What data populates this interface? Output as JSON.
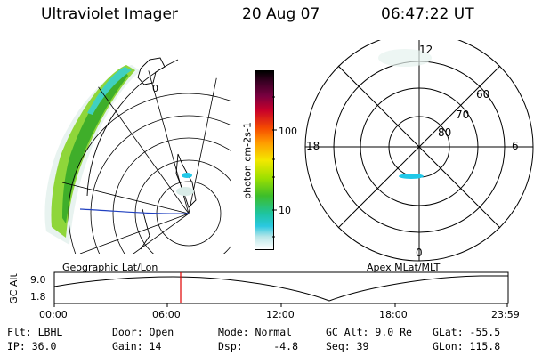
{
  "header": {
    "title": "Ultraviolet Imager",
    "date": "20 Aug 07",
    "time": "06:47:22 UT"
  },
  "colorbar": {
    "unit_label": "photon cm-2s-1",
    "ticks": [
      "100",
      "10"
    ]
  },
  "polar_plot": {
    "mlt_labels": {
      "top": "12",
      "bottom": "0",
      "left": "18",
      "right": "6"
    },
    "lat_labels": [
      "60",
      "70",
      "80"
    ]
  },
  "map_plot": {
    "meridian_label": "0"
  },
  "timeline": {
    "left_caption": "Geographic Lat/Lon",
    "right_caption": "Apex MLat/MLT",
    "ylabel": "GC Alt",
    "y_ticks": [
      "9.0",
      "1.8"
    ],
    "x_ticks": [
      "00:00",
      "06:00",
      "12:00",
      "18:00",
      "23:59"
    ],
    "current_marker": "06:47"
  },
  "footer": {
    "filter": "Flt: LBHL",
    "door": "Door: Open",
    "mode": "Mode: Normal",
    "gc_alt": "GC Alt: 9.0 Re",
    "glat": "GLat: -55.5",
    "ip": "IP: 36.0",
    "gain": "Gain: 14",
    "dsp": "Dsp:     -4.8",
    "seq": "Seq: 39",
    "glon": "GLon: 115.8"
  },
  "colors": {
    "accent_marker": "#e00000",
    "track_line": "#2040c0",
    "aurora_main": "#66cc33"
  }
}
